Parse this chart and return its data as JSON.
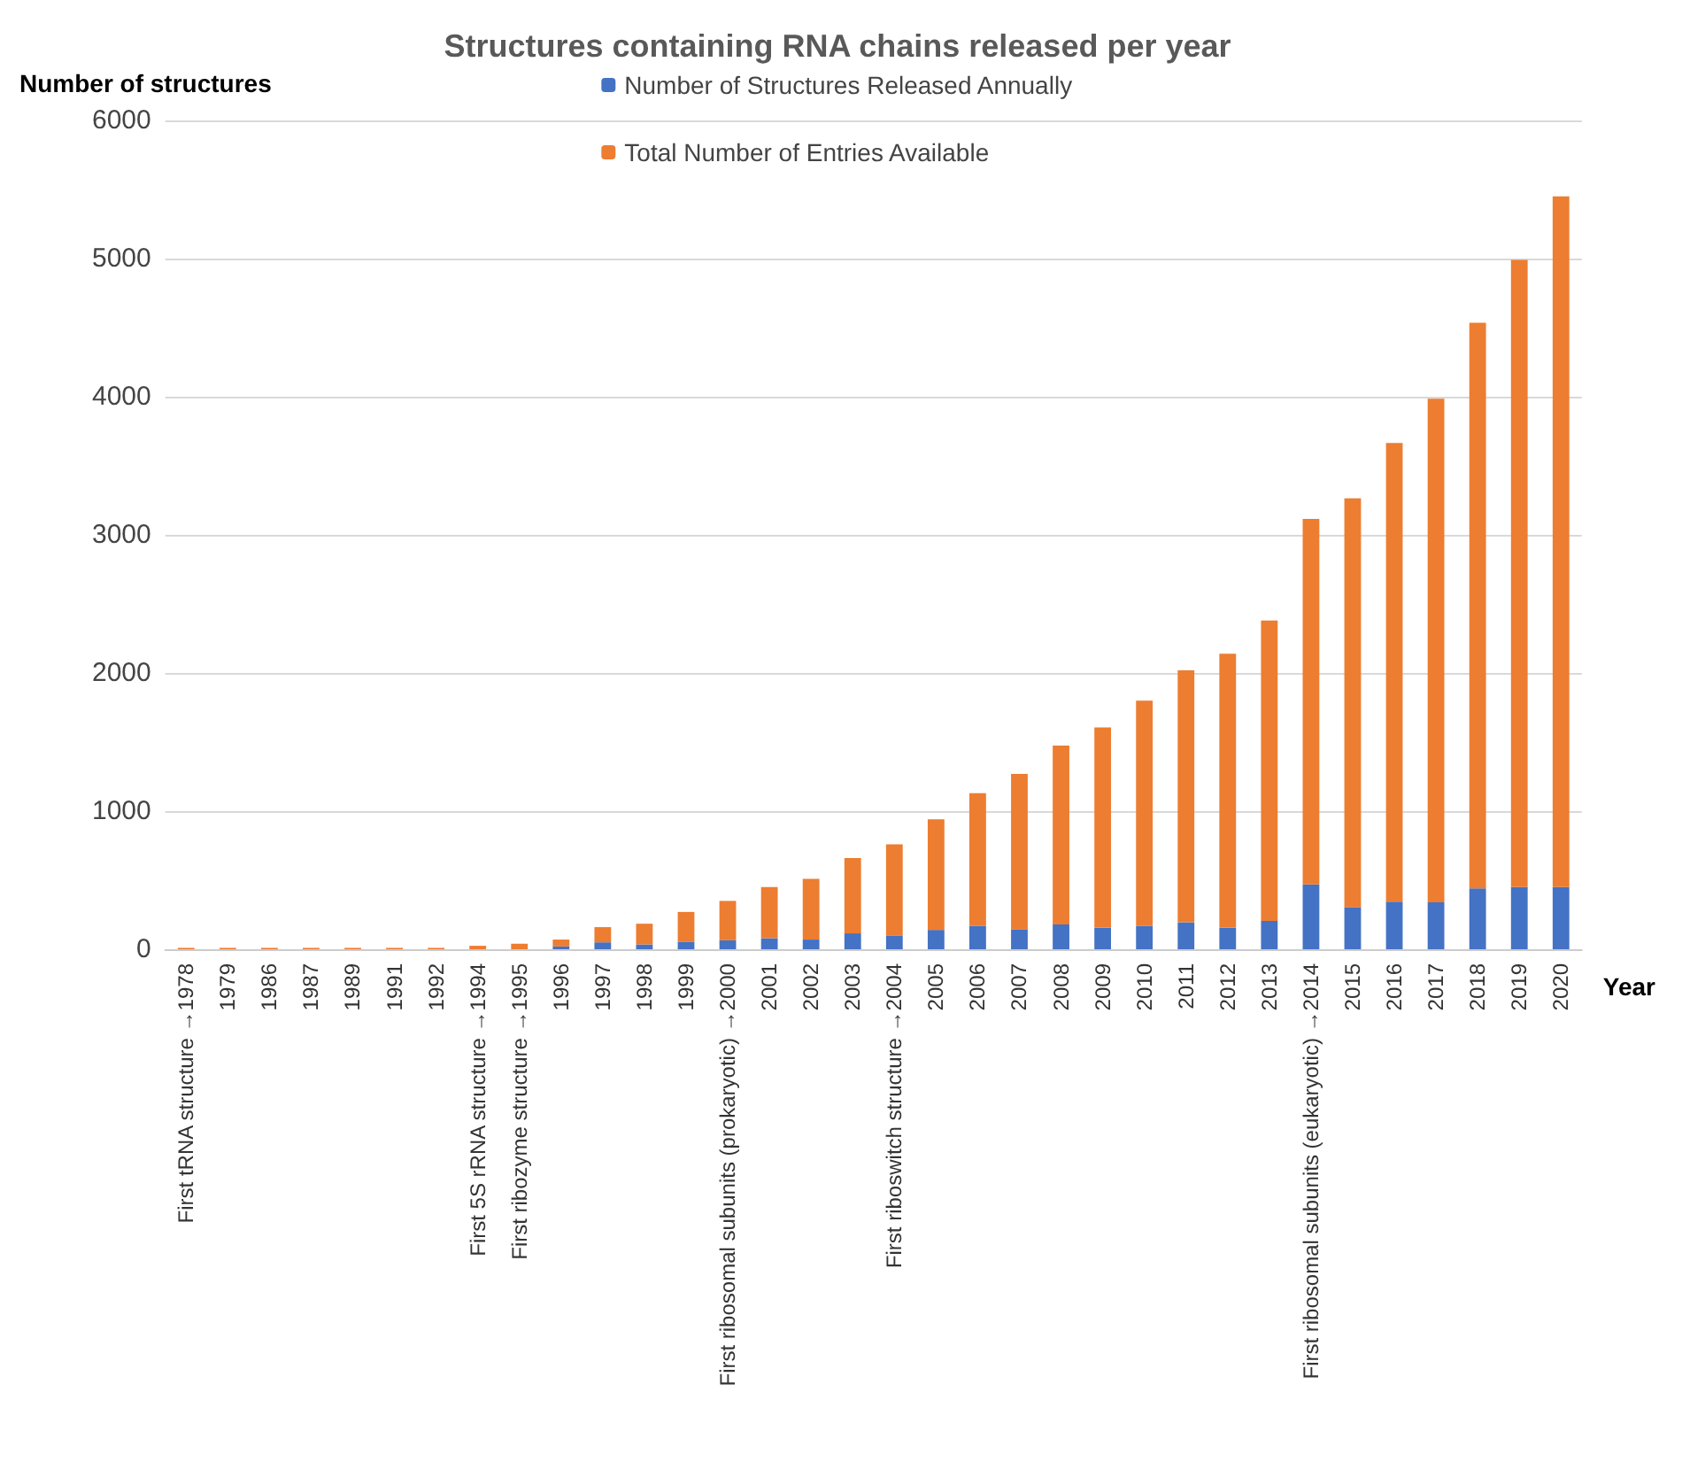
{
  "chart_data": {
    "type": "bar",
    "title": "Structures containing RNA chains released per year",
    "ylabel": "Number of structures",
    "xlabel": "Year",
    "categories": [
      "First tRNA structure →1978",
      "1979",
      "1986",
      "1987",
      "1989",
      "1991",
      "1992",
      "First 5S rRNA structure →1994",
      "First ribozyme structure →1995",
      "1996",
      "1997",
      "1998",
      "1999",
      "First ribosomal subunits (prokaryotic) →2000",
      "2001",
      "2002",
      "2003",
      "First riboswitch structure →2004",
      "2005",
      "2006",
      "2007",
      "2008",
      "2009",
      "2010",
      "2011",
      "2012",
      "2013",
      "First ribosomal subunits (eukaryotic) →2014",
      "2015",
      "2016",
      "2017",
      "2018",
      "2019",
      "2020"
    ],
    "series": [
      {
        "name": "Number of Structures Released Annually",
        "color": "#4472c4",
        "values": [
          0,
          0,
          0,
          0,
          0,
          0,
          0,
          0,
          0,
          20,
          50,
          35,
          55,
          65,
          80,
          70,
          115,
          100,
          140,
          170,
          145,
          180,
          155,
          170,
          195,
          155,
          205,
          470,
          305,
          345,
          340,
          440,
          450,
          450
        ]
      },
      {
        "name": "Total Number of Entries Available",
        "color": "#ed7d31",
        "values": [
          10,
          10,
          10,
          10,
          10,
          10,
          10,
          25,
          40,
          50,
          110,
          150,
          215,
          285,
          370,
          440,
          545,
          660,
          800,
          960,
          1125,
          1295,
          1450,
          1630,
          1825,
          1985,
          2175,
          2645,
          2960,
          3320,
          3645,
          4095,
          4540,
          5000
        ]
      }
    ],
    "stacked": true,
    "ylim": [
      0,
      6000
    ],
    "yticks": [
      0,
      1000,
      2000,
      3000,
      4000,
      5000,
      6000
    ],
    "grid": "y",
    "legend": "top"
  }
}
